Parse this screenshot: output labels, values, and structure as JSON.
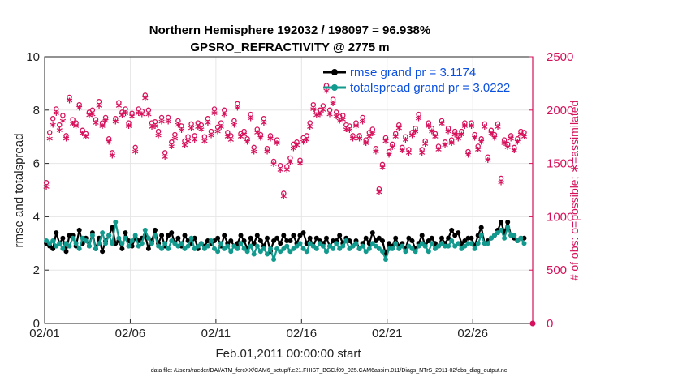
{
  "chart_data": {
    "type": "line",
    "title": "Northern Hemisphere 192032 / 198097 = 96.938%",
    "subtitle": "GPSRO_REFRACTIVITY @ 2775 m",
    "xlabel": "Feb.01,2011 00:00:00 start",
    "ylabel": "rmse and totalspread",
    "y2label": "# of obs: o=possible; ∗=assimilated",
    "footnote": "data file: /Users/raeder/DAI/ATM_forcXX/CAM6_setup/f.e21.FHIST_BGC.f09_025.CAM6assim.011/Diags_NTrS_2011-02/obs_diag_output.nc",
    "x_tick_labels": [
      "02/01",
      "02/06",
      "02/11",
      "02/16",
      "02/21",
      "02/26"
    ],
    "x_ticks_days": [
      0,
      5,
      10,
      15,
      20,
      25
    ],
    "xlim_days": [
      0,
      28.5
    ],
    "y_tick_labels": [
      "0",
      "2",
      "4",
      "6",
      "8",
      "10"
    ],
    "ylim": [
      0,
      10
    ],
    "y2_tick_labels": [
      "0",
      "500",
      "1000",
      "1500",
      "2000",
      "2500"
    ],
    "y2lim": [
      0,
      2500
    ],
    "grid": true,
    "legend_position": "top-right",
    "colors": {
      "rmse": "#000000",
      "spread": "#129a8e",
      "obs": "#d6115b",
      "legend_text": "#0b4fe0"
    },
    "series": [
      {
        "name": "rmse grand pr = 3.1174",
        "kind": "line-marker",
        "values": [
          3.0,
          2.9,
          2.8,
          3.4,
          3.0,
          3.2,
          2.7,
          3.3,
          3.3,
          2.9,
          3.5,
          3.0,
          3.2,
          2.9,
          3.4,
          2.8,
          3.2,
          2.7,
          3.1,
          3.3,
          3.6,
          3.0,
          3.1,
          2.8,
          3.4,
          3.1,
          2.9,
          3.2,
          3.1,
          3.2,
          3.3,
          2.8,
          3.1,
          3.5,
          3.0,
          3.3,
          2.9,
          3.3,
          3.4,
          3.0,
          3.2,
          2.9,
          3.3,
          3.1,
          3.0,
          3.2,
          2.8,
          3.0,
          2.9,
          3.1,
          3.0,
          3.1,
          3.2,
          2.9,
          3.3,
          3.0,
          3.1,
          2.9,
          3.0,
          3.3,
          3.1,
          2.8,
          3.2,
          3.0,
          3.3,
          3.1,
          2.9,
          3.2,
          2.7,
          3.1,
          3.2,
          3.0,
          3.3,
          3.1,
          3.1,
          3.3,
          3.0,
          3.3,
          3.4,
          3.0,
          3.2,
          2.9,
          3.2,
          3.1,
          3.0,
          3.2,
          2.9,
          3.1,
          3.1,
          3.3,
          3.0,
          3.2,
          3.1,
          2.9,
          3.1,
          2.8,
          3.0,
          3.2,
          3.0,
          3.4,
          3.1,
          3.2,
          3.1,
          2.6,
          3.0,
          2.9,
          3.2,
          2.9,
          3.0,
          2.8,
          3.2,
          3.1,
          2.8,
          3.0,
          3.3,
          2.9,
          3.1,
          3.2,
          3.0,
          2.9,
          3.2,
          3.0,
          3.2,
          3.5,
          3.3,
          3.4,
          3.0,
          3.1,
          3.2,
          3.2,
          2.9,
          3.3,
          3.6,
          3.0,
          3.1,
          3.2,
          3.3,
          3.5,
          3.8,
          3.4,
          3.8,
          3.3,
          3.2,
          3.1,
          3.2,
          3.2
        ]
      },
      {
        "name": "totalspread grand pr = 3.0222",
        "kind": "line-marker",
        "values": [
          3.1,
          3.0,
          3.1,
          2.9,
          3.0,
          2.8,
          3.0,
          2.9,
          3.2,
          3.0,
          2.8,
          3.2,
          3.1,
          2.9,
          3.3,
          2.8,
          3.0,
          3.4,
          3.0,
          3.3,
          3.0,
          3.8,
          3.2,
          3.0,
          3.2,
          2.9,
          3.1,
          3.3,
          2.9,
          3.0,
          3.5,
          3.2,
          3.0,
          3.3,
          2.9,
          2.8,
          3.0,
          2.8,
          3.1,
          3.0,
          2.9,
          3.0,
          2.8,
          2.9,
          3.2,
          2.8,
          2.9,
          3.0,
          2.8,
          2.9,
          3.1,
          2.8,
          2.7,
          3.0,
          2.8,
          2.9,
          2.7,
          2.9,
          2.8,
          3.0,
          2.8,
          2.7,
          2.9,
          2.6,
          2.9,
          2.7,
          2.8,
          2.6,
          2.8,
          2.4,
          2.8,
          2.7,
          2.8,
          2.9,
          2.7,
          2.8,
          2.9,
          3.0,
          2.8,
          2.7,
          3.0,
          2.9,
          2.8,
          3.0,
          2.9,
          2.7,
          2.9,
          2.8,
          3.0,
          2.8,
          2.9,
          3.1,
          2.8,
          2.9,
          3.0,
          2.8,
          2.9,
          2.7,
          2.8,
          3.0,
          2.9,
          2.8,
          2.7,
          2.4,
          2.8,
          2.8,
          3.0,
          2.8,
          2.9,
          2.7,
          2.9,
          2.8,
          2.7,
          2.9,
          3.0,
          2.9,
          2.7,
          3.0,
          2.8,
          2.9,
          3.0,
          2.9,
          2.9,
          3.1,
          2.9,
          3.0,
          2.8,
          2.9,
          3.0,
          3.0,
          2.8,
          3.0,
          3.3,
          3.0,
          3.0,
          3.2,
          3.3,
          3.4,
          3.5,
          3.2,
          3.6,
          3.3,
          3.3,
          3.1,
          3.2,
          3.0
        ]
      },
      {
        "name": "obs possible",
        "kind": "marker-o",
        "axis": "right",
        "values": [
          1320,
          1790,
          1920,
          2010,
          1860,
          1950,
          1760,
          2120,
          1910,
          1880,
          2050,
          1810,
          1780,
          1980,
          2000,
          1910,
          2080,
          1880,
          1930,
          1730,
          1600,
          1920,
          2070,
          1980,
          2010,
          1880,
          1970,
          1650,
          2010,
          1990,
          2140,
          2000,
          1880,
          1890,
          1800,
          1930,
          1600,
          1930,
          1700,
          1770,
          1900,
          1850,
          1710,
          1750,
          1870,
          1760,
          1880,
          1860,
          1750,
          1920,
          1800,
          2010,
          1840,
          1880,
          2000,
          1790,
          1760,
          1900,
          2060,
          1780,
          1800,
          1730,
          1960,
          1650,
          1820,
          1770,
          1920,
          1640,
          1760,
          1520,
          1720,
          1480,
          1220,
          1470,
          1550,
          1680,
          1700,
          1530,
          1740,
          1760,
          1880,
          2050,
          1990,
          2000,
          2040,
          2230,
          2000,
          2100,
          1980,
          1940,
          1950,
          1860,
          1850,
          1760,
          1880,
          1760,
          1930,
          1720,
          1790,
          1820,
          1640,
          1260,
          1490,
          1740,
          1610,
          1680,
          1780,
          1860,
          1650,
          1750,
          1630,
          1790,
          1830,
          1960,
          1630,
          1710,
          1880,
          1830,
          1780,
          1660,
          1900,
          1700,
          1830,
          1720,
          1800,
          1760,
          1800,
          1880,
          1610,
          1880,
          1770,
          1660,
          1730,
          1870,
          1560,
          1810,
          1770,
          1870,
          1360,
          1720,
          1680,
          1760,
          1650,
          1730,
          1800,
          1790
        ]
      },
      {
        "name": "obs assimilated",
        "kind": "marker-star",
        "axis": "right",
        "values": [
          1270,
          1720,
          1850,
          1960,
          1800,
          1890,
          1720,
          2080,
          1860,
          1840,
          2010,
          1770,
          1740,
          1940,
          1950,
          1870,
          2030,
          1840,
          1890,
          1690,
          1560,
          1880,
          2030,
          1940,
          1960,
          1840,
          1930,
          1600,
          1960,
          1950,
          2100,
          1950,
          1830,
          1840,
          1750,
          1880,
          1550,
          1880,
          1650,
          1720,
          1850,
          1800,
          1660,
          1700,
          1820,
          1710,
          1830,
          1810,
          1700,
          1870,
          1750,
          1960,
          1790,
          1830,
          1950,
          1740,
          1710,
          1850,
          2010,
          1740,
          1760,
          1690,
          1910,
          1600,
          1780,
          1730,
          1870,
          1600,
          1720,
          1480,
          1680,
          1430,
          1180,
          1430,
          1500,
          1630,
          1660,
          1490,
          1690,
          1710,
          1830,
          2000,
          1940,
          1950,
          1990,
          2170,
          1950,
          2050,
          1930,
          1890,
          1900,
          1810,
          1800,
          1720,
          1840,
          1720,
          1880,
          1680,
          1740,
          1770,
          1600,
          1220,
          1450,
          1700,
          1570,
          1640,
          1740,
          1820,
          1610,
          1710,
          1590,
          1750,
          1790,
          1910,
          1590,
          1670,
          1840,
          1790,
          1740,
          1620,
          1860,
          1660,
          1790,
          1680,
          1760,
          1720,
          1760,
          1840,
          1570,
          1840,
          1730,
          1620,
          1690,
          1830,
          1520,
          1770,
          1730,
          1830,
          1310,
          1680,
          1640,
          1720,
          1610,
          1690,
          1760,
          1740
        ]
      }
    ],
    "right_axis_stray_marker": 0
  }
}
